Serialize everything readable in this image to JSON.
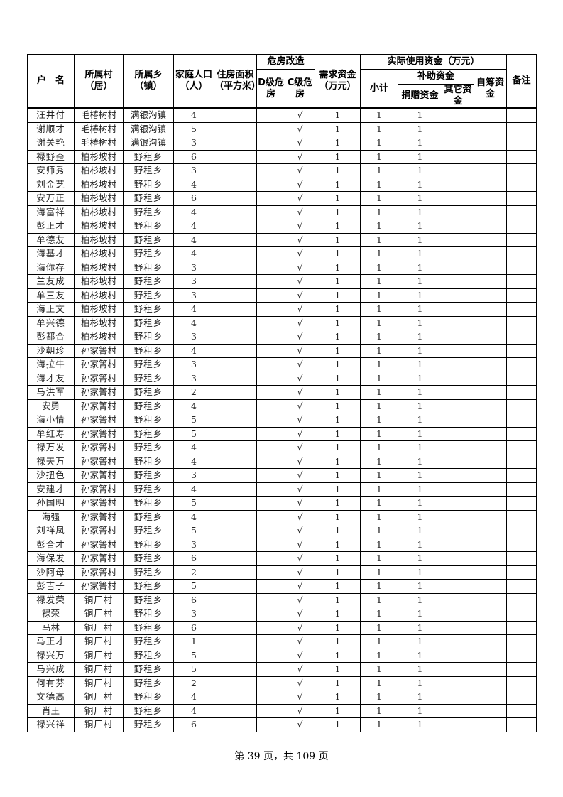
{
  "header": {
    "name": "户　名",
    "village": "所属村（居）",
    "township": "所属乡（镇）",
    "population": "家庭人口（人）",
    "area": "住房面积（平方米）",
    "renovation": "危房改造",
    "d_level": "D级危房",
    "c_level": "C级危房",
    "demand": "需求资金（万元）",
    "actual": "实际使用资金（万元）",
    "subtotal": "小计",
    "subsidy": "补助资金",
    "donation": "捐赠资金",
    "other": "其它资金",
    "self": "自筹资金",
    "remarks": "备注"
  },
  "rows": [
    [
      "汪井付",
      "毛椿树村",
      "满银沟镇",
      "4",
      "",
      "",
      "√",
      "1",
      "1",
      "1",
      "",
      "",
      ""
    ],
    [
      "谢顺才",
      "毛椿树村",
      "满银沟镇",
      "5",
      "",
      "",
      "√",
      "1",
      "1",
      "1",
      "",
      "",
      ""
    ],
    [
      "谢关艳",
      "毛椿树村",
      "满银沟镇",
      "3",
      "",
      "",
      "√",
      "1",
      "1",
      "1",
      "",
      "",
      ""
    ],
    [
      "禄野歪",
      "柏杉坡村",
      "野租乡",
      "6",
      "",
      "",
      "√",
      "1",
      "1",
      "1",
      "",
      "",
      ""
    ],
    [
      "安师秀",
      "柏杉坡村",
      "野租乡",
      "3",
      "",
      "",
      "√",
      "1",
      "1",
      "1",
      "",
      "",
      ""
    ],
    [
      "刘金芝",
      "柏杉坡村",
      "野租乡",
      "4",
      "",
      "",
      "√",
      "1",
      "1",
      "1",
      "",
      "",
      ""
    ],
    [
      "安万正",
      "柏杉坡村",
      "野租乡",
      "6",
      "",
      "",
      "√",
      "1",
      "1",
      "1",
      "",
      "",
      ""
    ],
    [
      "海富祥",
      "柏杉坡村",
      "野租乡",
      "4",
      "",
      "",
      "√",
      "1",
      "1",
      "1",
      "",
      "",
      ""
    ],
    [
      "彭正才",
      "柏杉坡村",
      "野租乡",
      "4",
      "",
      "",
      "√",
      "1",
      "1",
      "1",
      "",
      "",
      ""
    ],
    [
      "牟德友",
      "柏杉坡村",
      "野租乡",
      "4",
      "",
      "",
      "√",
      "1",
      "1",
      "1",
      "",
      "",
      ""
    ],
    [
      "海基才",
      "柏杉坡村",
      "野租乡",
      "4",
      "",
      "",
      "√",
      "1",
      "1",
      "1",
      "",
      "",
      ""
    ],
    [
      "海你存",
      "柏杉坡村",
      "野租乡",
      "3",
      "",
      "",
      "√",
      "1",
      "1",
      "1",
      "",
      "",
      ""
    ],
    [
      "兰友成",
      "柏杉坡村",
      "野租乡",
      "3",
      "",
      "",
      "√",
      "1",
      "1",
      "1",
      "",
      "",
      ""
    ],
    [
      "牟三友",
      "柏杉坡村",
      "野租乡",
      "3",
      "",
      "",
      "√",
      "1",
      "1",
      "1",
      "",
      "",
      ""
    ],
    [
      "海正文",
      "柏杉坡村",
      "野租乡",
      "4",
      "",
      "",
      "√",
      "1",
      "1",
      "1",
      "",
      "",
      ""
    ],
    [
      "牟兴德",
      "柏杉坡村",
      "野租乡",
      "4",
      "",
      "",
      "√",
      "1",
      "1",
      "1",
      "",
      "",
      ""
    ],
    [
      "彭都合",
      "柏杉坡村",
      "野租乡",
      "3",
      "",
      "",
      "√",
      "1",
      "1",
      "1",
      "",
      "",
      ""
    ],
    [
      "沙朝珍",
      "孙家箐村",
      "野租乡",
      "4",
      "",
      "",
      "√",
      "1",
      "1",
      "1",
      "",
      "",
      ""
    ],
    [
      "海拉牛",
      "孙家箐村",
      "野租乡",
      "3",
      "",
      "",
      "√",
      "1",
      "1",
      "1",
      "",
      "",
      ""
    ],
    [
      "海才友",
      "孙家箐村",
      "野租乡",
      "3",
      "",
      "",
      "√",
      "1",
      "1",
      "1",
      "",
      "",
      ""
    ],
    [
      "马洪军",
      "孙家箐村",
      "野租乡",
      "2",
      "",
      "",
      "√",
      "1",
      "1",
      "1",
      "",
      "",
      ""
    ],
    [
      "安勇",
      "孙家箐村",
      "野租乡",
      "4",
      "",
      "",
      "√",
      "1",
      "1",
      "1",
      "",
      "",
      ""
    ],
    [
      "海小情",
      "孙家箐村",
      "野租乡",
      "5",
      "",
      "",
      "√",
      "1",
      "1",
      "1",
      "",
      "",
      ""
    ],
    [
      "牟红寿",
      "孙家箐村",
      "野租乡",
      "5",
      "",
      "",
      "√",
      "1",
      "1",
      "1",
      "",
      "",
      ""
    ],
    [
      "禄万发",
      "孙家箐村",
      "野租乡",
      "4",
      "",
      "",
      "√",
      "1",
      "1",
      "1",
      "",
      "",
      ""
    ],
    [
      "禄天万",
      "孙家箐村",
      "野租乡",
      "4",
      "",
      "",
      "√",
      "1",
      "1",
      "1",
      "",
      "",
      ""
    ],
    [
      "沙扭色",
      "孙家箐村",
      "野租乡",
      "3",
      "",
      "",
      "√",
      "1",
      "1",
      "1",
      "",
      "",
      ""
    ],
    [
      "安建才",
      "孙家箐村",
      "野租乡",
      "4",
      "",
      "",
      "√",
      "1",
      "1",
      "1",
      "",
      "",
      ""
    ],
    [
      "孙国明",
      "孙家箐村",
      "野租乡",
      "5",
      "",
      "",
      "√",
      "1",
      "1",
      "1",
      "",
      "",
      ""
    ],
    [
      "海强",
      "孙家箐村",
      "野租乡",
      "4",
      "",
      "",
      "√",
      "1",
      "1",
      "1",
      "",
      "",
      ""
    ],
    [
      "刘祥凤",
      "孙家箐村",
      "野租乡",
      "5",
      "",
      "",
      "√",
      "1",
      "1",
      "1",
      "",
      "",
      ""
    ],
    [
      "彭合才",
      "孙家箐村",
      "野租乡",
      "3",
      "",
      "",
      "√",
      "1",
      "1",
      "1",
      "",
      "",
      ""
    ],
    [
      "海保发",
      "孙家箐村",
      "野租乡",
      "6",
      "",
      "",
      "√",
      "1",
      "1",
      "1",
      "",
      "",
      ""
    ],
    [
      "沙阿母",
      "孙家箐村",
      "野租乡",
      "2",
      "",
      "",
      "√",
      "1",
      "1",
      "1",
      "",
      "",
      ""
    ],
    [
      "彭吉子",
      "孙家箐村",
      "野租乡",
      "5",
      "",
      "",
      "√",
      "1",
      "1",
      "1",
      "",
      "",
      ""
    ],
    [
      "禄发荣",
      "铜厂村",
      "野租乡",
      "6",
      "",
      "",
      "√",
      "1",
      "1",
      "1",
      "",
      "",
      ""
    ],
    [
      "禄荣",
      "铜厂村",
      "野租乡",
      "3",
      "",
      "",
      "√",
      "1",
      "1",
      "1",
      "",
      "",
      ""
    ],
    [
      "马林",
      "铜厂村",
      "野租乡",
      "6",
      "",
      "",
      "√",
      "1",
      "1",
      "1",
      "",
      "",
      ""
    ],
    [
      "马正才",
      "铜厂村",
      "野租乡",
      "1",
      "",
      "",
      "√",
      "1",
      "1",
      "1",
      "",
      "",
      ""
    ],
    [
      "禄兴万",
      "铜厂村",
      "野租乡",
      "5",
      "",
      "",
      "√",
      "1",
      "1",
      "1",
      "",
      "",
      ""
    ],
    [
      "马兴成",
      "铜厂村",
      "野租乡",
      "5",
      "",
      "",
      "√",
      "1",
      "1",
      "1",
      "",
      "",
      ""
    ],
    [
      "何有芬",
      "铜厂村",
      "野租乡",
      "2",
      "",
      "",
      "√",
      "1",
      "1",
      "1",
      "",
      "",
      ""
    ],
    [
      "文德高",
      "铜厂村",
      "野租乡",
      "4",
      "",
      "",
      "√",
      "1",
      "1",
      "1",
      "",
      "",
      ""
    ],
    [
      "肖王",
      "铜厂村",
      "野租乡",
      "4",
      "",
      "",
      "√",
      "1",
      "1",
      "1",
      "",
      "",
      ""
    ],
    [
      "禄兴祥",
      "铜厂村",
      "野租乡",
      "6",
      "",
      "",
      "√",
      "1",
      "1",
      "1",
      "",
      "",
      ""
    ]
  ],
  "footer": {
    "page_text": "第 39 页，共 109 页"
  }
}
